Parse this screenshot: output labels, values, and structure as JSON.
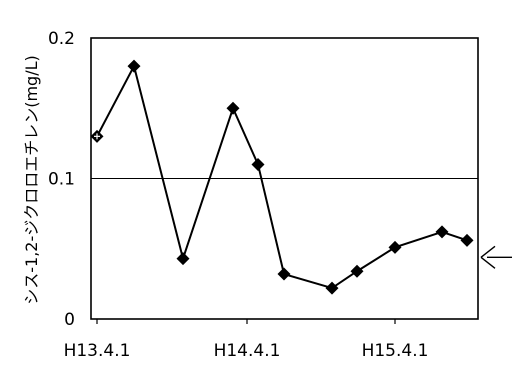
{
  "chart_data": {
    "type": "line",
    "title": "",
    "xlabel": "",
    "ylabel": "シス-1,2-ジクロロエチレン(mg/L)",
    "ylim": [
      0,
      0.2
    ],
    "yticks": [
      "0",
      "0.1",
      "0.2"
    ],
    "xtick_labels": [
      "H13.4.1",
      "H14.4.1",
      "H15.4.1"
    ],
    "reference_line": 0.1,
    "grid": false,
    "legend": "none",
    "series": [
      {
        "x": [
          "H13.4",
          "H13.7",
          "H13.10",
          "H14.1",
          "H14.4",
          "H14.5",
          "H14.7",
          "H14.10",
          "H14.12",
          "H15.3",
          "H15.6",
          "H15.8"
        ],
        "values": [
          0.13,
          0.18,
          0.043,
          0.15,
          0.11,
          0.032,
          0.022,
          0.034,
          0.051,
          0.062,
          0.056,
          0.056
        ],
        "marker": "diamond",
        "color": "#000000"
      }
    ],
    "annotation_arrow": "arrow pointing left at last data point"
  }
}
